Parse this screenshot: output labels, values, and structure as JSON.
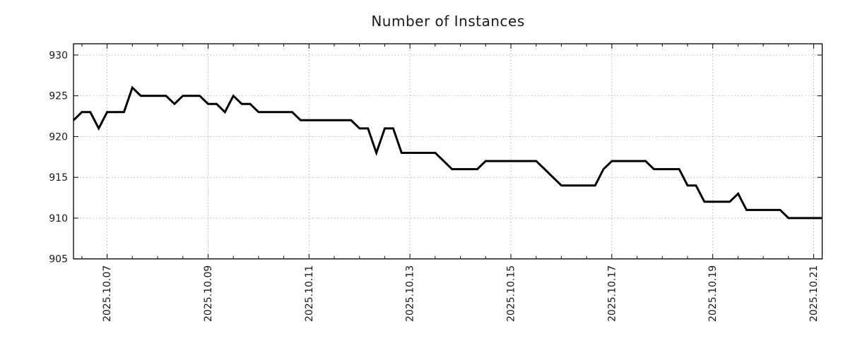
{
  "chart_data": {
    "type": "line",
    "title": "Number of Instances",
    "series": [
      {
        "name": "instances",
        "start": "2025.10.06 08:00",
        "interval_hours": 4,
        "values": [
          922,
          923,
          923,
          921,
          923,
          923,
          923,
          926,
          925,
          925,
          925,
          925,
          924,
          925,
          925,
          925,
          924,
          924,
          923,
          925,
          924,
          924,
          923,
          923,
          923,
          923,
          923,
          922,
          922,
          922,
          922,
          922,
          922,
          922,
          921,
          921,
          918,
          921,
          921,
          918,
          918,
          918,
          918,
          918,
          917,
          916,
          916,
          916,
          916,
          917,
          917,
          917,
          917,
          917,
          917,
          917,
          916,
          915,
          914,
          914,
          914,
          914,
          914,
          916,
          917,
          917,
          917,
          917,
          917,
          916,
          916,
          916,
          916,
          914,
          914,
          912,
          912,
          912,
          912,
          913,
          911,
          911,
          911,
          911,
          911,
          910,
          910,
          910,
          910,
          910
        ]
      }
    ],
    "x_tick_labels": [
      "2025.10.07",
      "2025.10.09",
      "2025.10.11",
      "2025.10.13",
      "2025.10.15",
      "2025.10.17",
      "2025.10.19",
      "2025.10.21"
    ],
    "y_tick_labels": [
      "905",
      "910",
      "915",
      "920",
      "925",
      "930"
    ],
    "y_ticks": [
      905,
      910,
      915,
      920,
      925,
      930
    ],
    "ylim": [
      905,
      931.4
    ],
    "grid": true,
    "legend": "none",
    "line_color": "#000000",
    "grid_color": "#b3b3b3",
    "axis_color": "#000000",
    "text_color": "#1a1a1a",
    "background": "#ffffff"
  }
}
